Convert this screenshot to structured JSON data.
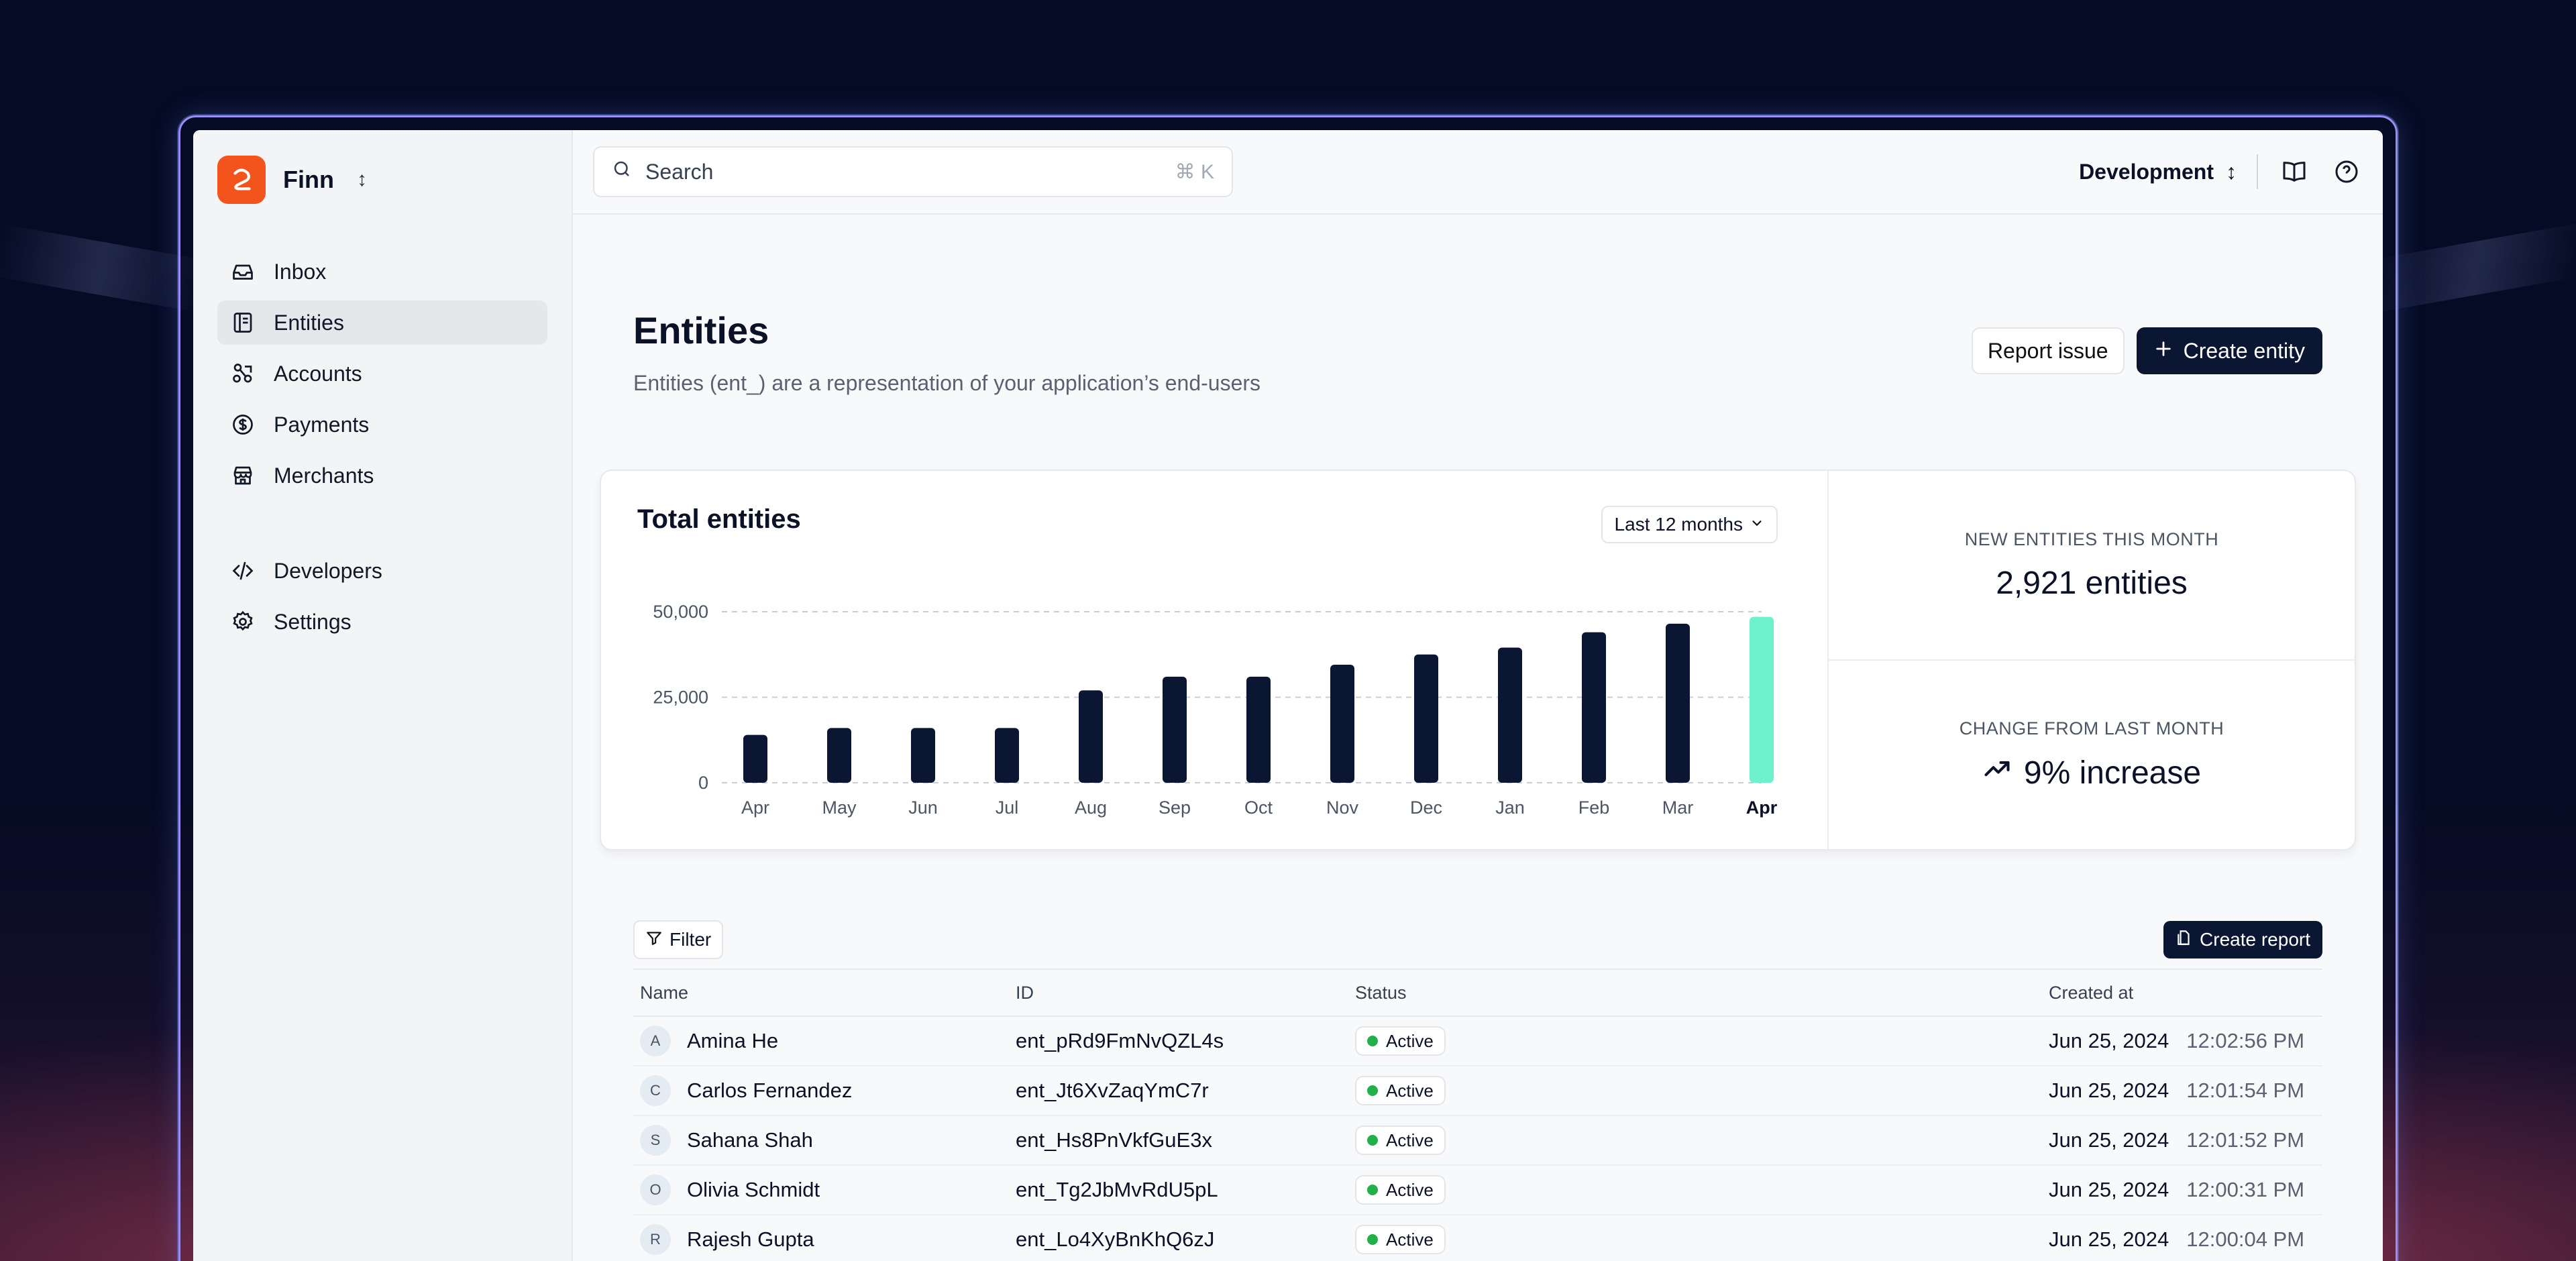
{
  "sidebar": {
    "brand": "Finn",
    "brand_toggle": "↕",
    "items": [
      {
        "label": "Inbox",
        "icon": "inbox-icon"
      },
      {
        "label": "Entities",
        "icon": "entity-icon"
      },
      {
        "label": "Accounts",
        "icon": "accounts-icon"
      },
      {
        "label": "Payments",
        "icon": "dollar-icon"
      },
      {
        "label": "Merchants",
        "icon": "store-icon"
      }
    ],
    "secondary": [
      {
        "label": "Developers",
        "icon": "code-icon"
      },
      {
        "label": "Settings",
        "icon": "gear-icon"
      }
    ]
  },
  "topbar": {
    "search_placeholder": "Search",
    "shortcut": "⌘ K",
    "environment": "Development",
    "env_toggle": "↕"
  },
  "page": {
    "title": "Entities",
    "subtitle": "Entities (ent_) are a representation of your application’s end-users",
    "report_issue": "Report issue",
    "create_entity": "Create entity"
  },
  "chart_card": {
    "title": "Total entities",
    "range": "Last 12 months",
    "stats": [
      {
        "label": "NEW ENTITIES THIS MONTH",
        "value": "2,921 entities"
      },
      {
        "label": "CHANGE FROM LAST MONTH",
        "value": "9% increase"
      }
    ]
  },
  "chart_data": {
    "type": "bar",
    "categories": [
      "Apr",
      "May",
      "Jun",
      "Jul",
      "Aug",
      "Sep",
      "Oct",
      "Nov",
      "Dec",
      "Jan",
      "Feb",
      "Mar",
      "Apr"
    ],
    "values": [
      14000,
      16000,
      16000,
      16000,
      27000,
      31000,
      31000,
      34500,
      37500,
      39500,
      44000,
      46500,
      48500
    ],
    "highlight_index": 12,
    "yticks": [
      0,
      25000,
      50000
    ],
    "ytick_labels": [
      "0",
      "25,000",
      "50,000"
    ],
    "ylim": [
      0,
      50000
    ],
    "grid": true,
    "colors": {
      "bar": "#0b1633",
      "highlight": "#6ef2cc",
      "grid": "#c8ccd3"
    }
  },
  "table": {
    "filter": "Filter",
    "create_report": "Create report",
    "columns": [
      "Name",
      "ID",
      "Status",
      "Created at"
    ],
    "rows": [
      {
        "initial": "A",
        "name": "Amina He",
        "id": "ent_pRd9FmNvQZL4s",
        "status": "Active",
        "date": "Jun 25, 2024",
        "time": "12:02:56 PM"
      },
      {
        "initial": "C",
        "name": "Carlos Fernandez",
        "id": "ent_Jt6XvZaqYmC7r",
        "status": "Active",
        "date": "Jun 25, 2024",
        "time": "12:01:54 PM"
      },
      {
        "initial": "S",
        "name": "Sahana Shah",
        "id": "ent_Hs8PnVkfGuE3x",
        "status": "Active",
        "date": "Jun 25, 2024",
        "time": "12:01:52 PM"
      },
      {
        "initial": "O",
        "name": "Olivia Schmidt",
        "id": "ent_Tg2JbMvRdU5pL",
        "status": "Active",
        "date": "Jun 25, 2024",
        "time": "12:00:31 PM"
      },
      {
        "initial": "R",
        "name": "Rajesh Gupta",
        "id": "ent_Lo4XyBnKhQ6zJ",
        "status": "Active",
        "date": "Jun 25, 2024",
        "time": "12:00:04 PM"
      }
    ]
  },
  "colors": {
    "accent": "#f2541b",
    "primary": "#0b1633",
    "status_active": "#22b04b"
  }
}
